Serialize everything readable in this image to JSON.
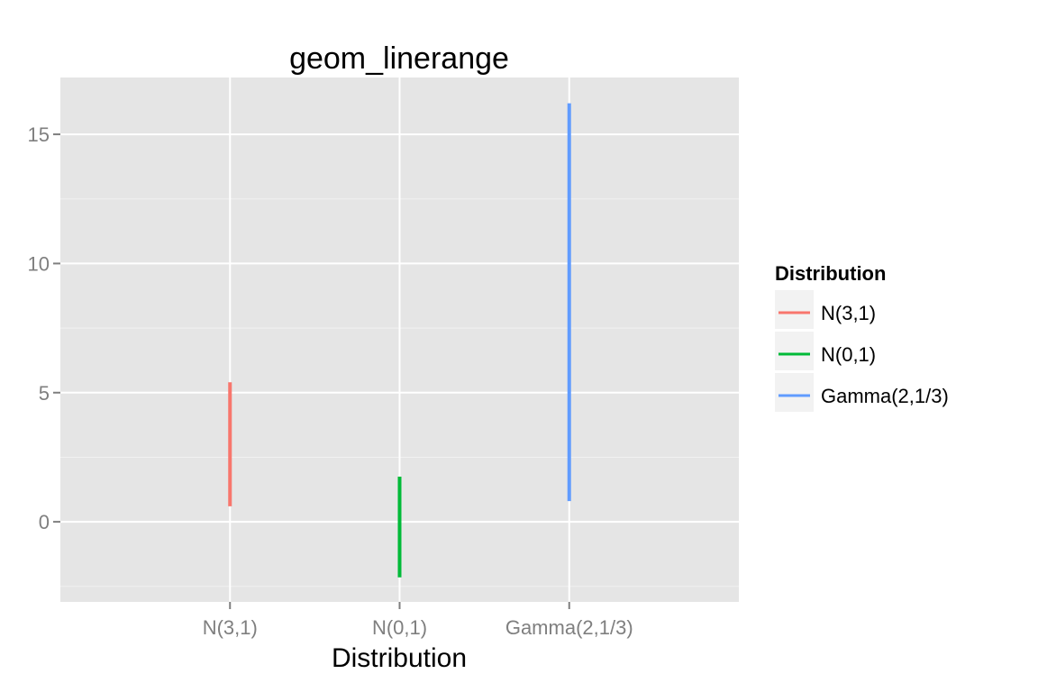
{
  "chart_data": {
    "type": "linerange",
    "title": "geom_linerange",
    "xlabel": "Distribution",
    "ylabel": "",
    "categories": [
      "N(3,1)",
      "N(0,1)",
      "Gamma(2,1/3)"
    ],
    "ylim": [
      -3.1,
      17.2
    ],
    "yticks": [
      0,
      5,
      10,
      15
    ],
    "ranges": [
      {
        "category": "N(3,1)",
        "ymin": 0.6,
        "ymax": 5.4,
        "color": "#f8766d"
      },
      {
        "category": "N(0,1)",
        "ymin": -2.15,
        "ymax": 1.75,
        "color": "#00ba38"
      },
      {
        "category": "Gamma(2,1/3)",
        "ymin": 0.8,
        "ymax": 16.2,
        "color": "#619cff"
      }
    ],
    "grid": true,
    "legend": {
      "title": "Distribution",
      "position": "right",
      "items": [
        {
          "label": "N(3,1)",
          "color": "#f8766d"
        },
        {
          "label": "N(0,1)",
          "color": "#00ba38"
        },
        {
          "label": "Gamma(2,1/3)",
          "color": "#619cff"
        }
      ]
    }
  }
}
